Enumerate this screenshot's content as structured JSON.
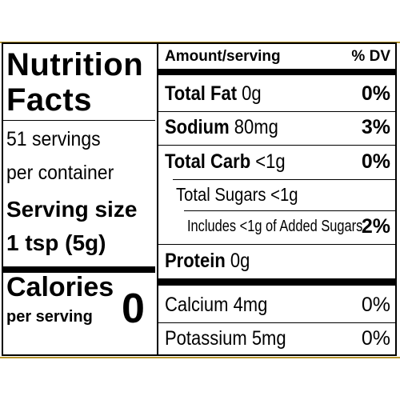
{
  "left": {
    "title_line1": "Nutrition",
    "title_line2": "Facts",
    "servings_line1": "51 servings",
    "servings_line2": "per container",
    "serving_size_label": "Serving size",
    "serving_size_value": "1 tsp (5g)",
    "calories_label": "Calories",
    "per_serving_label": "per serving",
    "calories_value": "0"
  },
  "right": {
    "header_amount": "Amount/serving",
    "header_dv": "% DV",
    "rows": [
      {
        "name": "Total Fat",
        "amount": "0g",
        "dv": "0%"
      },
      {
        "name": "Sodium",
        "amount": "80mg",
        "dv": "3%"
      },
      {
        "name": "Total Carb",
        "amount": "<1g",
        "dv": "0%"
      },
      {
        "name": "Total Sugars <1g",
        "amount": "",
        "dv": ""
      },
      {
        "name": "Includes <1g of Added Sugars",
        "amount": "",
        "dv": "2%"
      },
      {
        "name": "Protein",
        "amount": "0g",
        "dv": ""
      },
      {
        "name": "Calcium 4mg",
        "amount": "",
        "dv": "0%"
      },
      {
        "name": "Potassium 5mg",
        "amount": "",
        "dv": "0%"
      }
    ]
  },
  "colors": {
    "border_gold": "#b8962e",
    "text": "#000000",
    "background": "#ffffff"
  }
}
